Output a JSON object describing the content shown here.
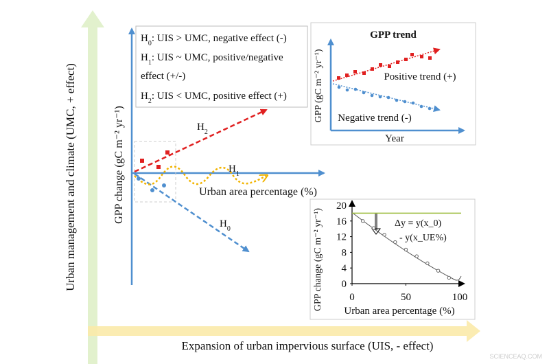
{
  "axes": {
    "y_label": "Urban management and climate (UMC, + effect)",
    "x_label": "Expansion of urban impervious surface (UIS, - effect)"
  },
  "main": {
    "y_label": "GPP change (gC m⁻² yr⁻¹)",
    "x_label": "Urban area percentage (%)",
    "paths": [
      {
        "symbol": "H",
        "sub": "2"
      },
      {
        "symbol": "H",
        "sub": "1"
      },
      {
        "symbol": "H",
        "sub": "0"
      }
    ]
  },
  "hypotheses": [
    {
      "symbol": "H",
      "sub": "0",
      "lines": [
        ": UIS > UMC, negative effect (-)"
      ]
    },
    {
      "symbol": "H",
      "sub": "1",
      "lines": [
        ": UIS ~ UMC, positive/negative",
        "effect (+/-)"
      ]
    },
    {
      "symbol": "H",
      "sub": "2",
      "lines": [
        ": UIS < UMC, positive effect (+)"
      ]
    }
  ],
  "trend_inset": {
    "title": "GPP trend",
    "y_label": "GPP (gC m⁻² yr⁻¹)",
    "x_label": "Year",
    "positive": "Positive trend (+)",
    "negative": "Negative trend (-)"
  },
  "gpp_inset": {
    "y_label": "GPP change (gC m⁻² yr⁻¹)",
    "x_label": "Urban area percentage (%)",
    "xlim": [
      0,
      100
    ],
    "ylim": [
      0,
      20
    ],
    "xticks": [
      0,
      50,
      100
    ],
    "yticks": [
      0,
      4,
      8,
      12,
      16,
      20
    ],
    "reference": 18,
    "annotation": [
      "Δy = y(x_0)",
      "- y(x_UE%)"
    ],
    "points": {
      "x": [
        10,
        20,
        30,
        40,
        50,
        60,
        70,
        80,
        90
      ],
      "y": [
        16,
        14.2,
        12.5,
        10.6,
        8.7,
        7,
        5.2,
        3.3,
        1.5
      ]
    }
  },
  "watermark": "SCIENCEAQ.COM"
}
